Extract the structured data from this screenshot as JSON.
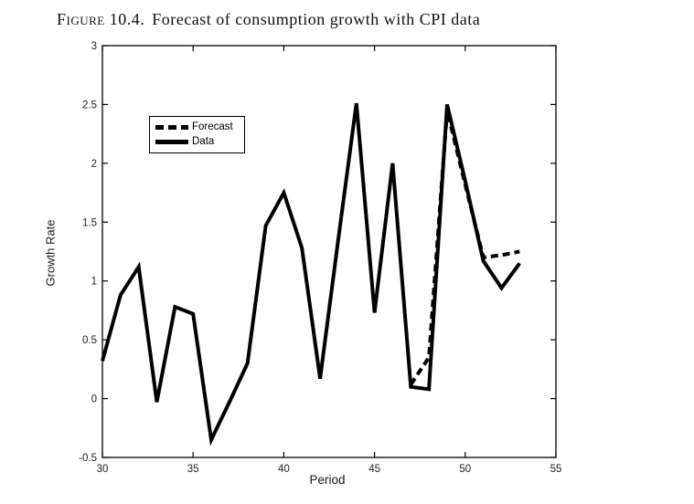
{
  "figure": {
    "caption_label": "Figure 10.4.",
    "caption_text": "Forecast of consumption growth with CPI data"
  },
  "chart_data": {
    "type": "line",
    "title": "Figure 10.4. Forecast of consumption growth with CPI data",
    "xlabel": "Period",
    "ylabel": "Growth Rate",
    "xlim": [
      30,
      55
    ],
    "ylim": [
      -0.5,
      3
    ],
    "x_ticks": [
      30,
      35,
      40,
      45,
      50,
      55
    ],
    "y_ticks": [
      -0.5,
      0,
      0.5,
      1,
      1.5,
      2,
      2.5,
      3
    ],
    "grid": false,
    "background": "#ffffff",
    "line_color": "#000000",
    "legend": {
      "position": "upper-left-inside",
      "entries": [
        {
          "label": "Forecast",
          "line_style": "dashed"
        },
        {
          "label": "Data",
          "line_style": "solid"
        }
      ]
    },
    "series": [
      {
        "name": "Data",
        "line_style": "solid",
        "x": [
          30,
          31,
          32,
          33,
          34,
          35,
          36,
          37,
          38,
          39,
          40,
          41,
          42,
          43,
          44,
          45,
          46,
          47,
          48,
          49,
          50,
          51,
          52,
          53
        ],
        "y": [
          0.32,
          0.88,
          1.12,
          -0.03,
          0.78,
          0.72,
          -0.35,
          -0.03,
          0.3,
          1.47,
          1.75,
          1.28,
          0.17,
          1.35,
          2.51,
          0.73,
          2.0,
          0.1,
          0.08,
          2.5,
          1.85,
          1.17,
          0.94,
          1.15
        ]
      },
      {
        "name": "Forecast",
        "line_style": "dashed",
        "x": [
          47,
          48,
          49,
          50,
          51,
          52,
          53
        ],
        "y": [
          0.12,
          0.35,
          2.45,
          1.82,
          1.2,
          1.22,
          1.25
        ]
      }
    ]
  }
}
